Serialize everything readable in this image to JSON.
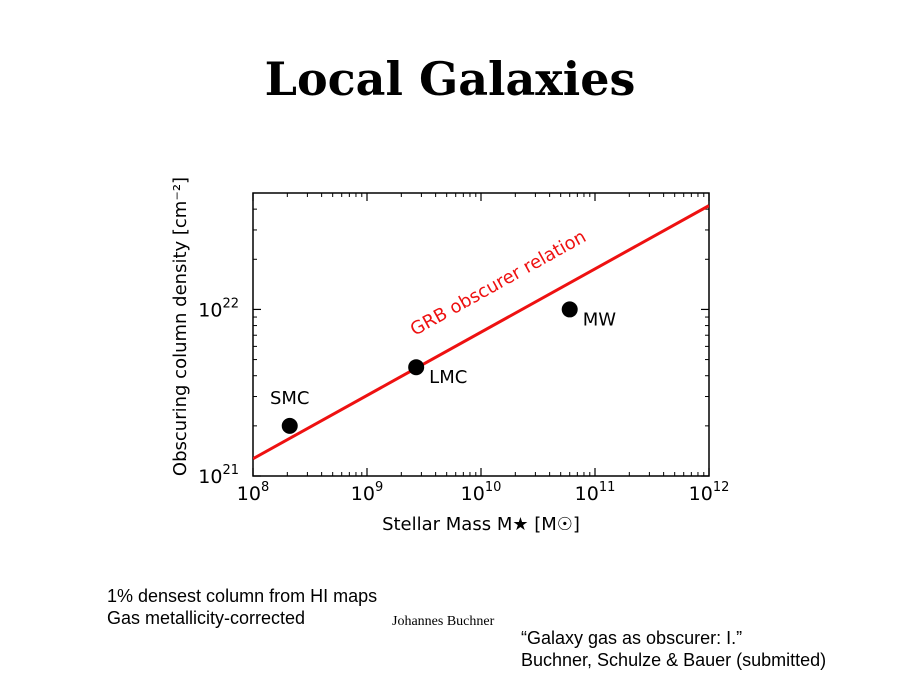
{
  "slide": {
    "title": "Local Galaxies",
    "notes": [
      "1% densest column from HI maps",
      "Gas metallicity-corrected"
    ],
    "author": "Johannes Buchner",
    "reference": [
      "“Galaxy gas as obscurer: I.”",
      "Buchner, Schulze & Bauer (submitted)"
    ]
  },
  "chart_data": {
    "type": "scatter",
    "xlabel": "Stellar Mass M★ [M☉]",
    "ylabel": "Obscuring column density [cm⁻²]",
    "xscale": "log",
    "yscale": "log",
    "xlim": [
      100000000.0,
      1000000000000.0
    ],
    "ylim": [
      1e+21,
      5e+22
    ],
    "x_ticks": [
      {
        "base": "10",
        "exp": "8",
        "value": 100000000.0
      },
      {
        "base": "10",
        "exp": "9",
        "value": 1000000000.0
      },
      {
        "base": "10",
        "exp": "10",
        "value": 10000000000.0
      },
      {
        "base": "10",
        "exp": "11",
        "value": 100000000000.0
      },
      {
        "base": "10",
        "exp": "12",
        "value": 1000000000000.0
      }
    ],
    "y_ticks": [
      {
        "base": "10",
        "exp": "21",
        "value": 1e+21
      },
      {
        "base": "10",
        "exp": "22",
        "value": 1e+22
      }
    ],
    "grid": false,
    "points": [
      {
        "label": "SMC",
        "x": 210000000.0,
        "y": 2e+21,
        "label_pos": "above"
      },
      {
        "label": "LMC",
        "x": 2700000000.0,
        "y": 4.5e+21,
        "label_pos": "below-right"
      },
      {
        "label": "MW",
        "x": 60000000000.0,
        "y": 1e+22,
        "label_pos": "below-right"
      }
    ],
    "relation": {
      "label": "GRB obscurer relation",
      "color": "#ee1111",
      "x": [
        100000000.0,
        1000000000000.0
      ],
      "y": [
        1.27e+21,
        4.2e+22
      ]
    },
    "point_color": "#000000"
  }
}
